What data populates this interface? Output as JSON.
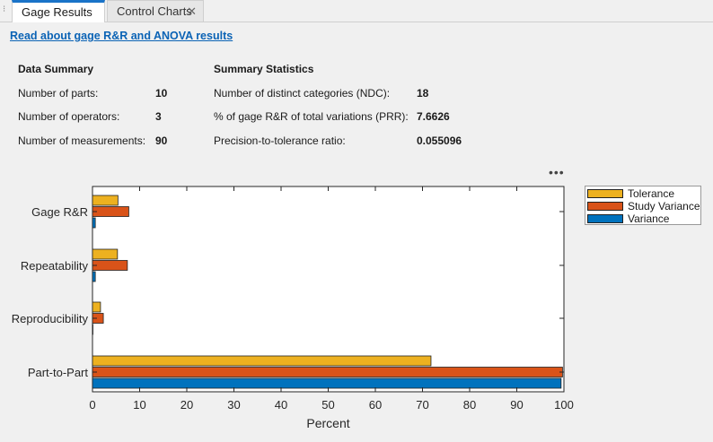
{
  "tabs": [
    {
      "label": "Gage Results",
      "active": true
    },
    {
      "label": "Control Charts",
      "active": false,
      "close_icon": "close-icon"
    }
  ],
  "link_text": "Read about gage R&R and ANOVA results",
  "data_summary": {
    "title": "Data Summary",
    "rows": [
      {
        "label": "Number of parts:",
        "value": "10"
      },
      {
        "label": "Number of operators:",
        "value": "3"
      },
      {
        "label": "Number of measurements:",
        "value": "90"
      }
    ]
  },
  "summary_statistics": {
    "title": "Summary Statistics",
    "rows": [
      {
        "label": "Number of distinct categories (NDC):",
        "value": "18"
      },
      {
        "label": "% of gage R&R of total variations (PRR):",
        "value": "7.6626"
      },
      {
        "label": "Precision-to-tolerance ratio:",
        "value": "0.055096"
      }
    ]
  },
  "more_options_icon": "ellipsis-icon",
  "chart_data": {
    "type": "bar",
    "orientation": "horizontal",
    "categories": [
      "Gage R&R",
      "Repeatability",
      "Reproducibility",
      "Part-to-Part"
    ],
    "series": [
      {
        "name": "Tolerance",
        "color": "#edb120",
        "values": [
          5.4,
          5.3,
          1.7,
          71.8
        ]
      },
      {
        "name": "Study Variance",
        "color": "#d95319",
        "values": [
          7.7,
          7.4,
          2.3,
          99.7
        ]
      },
      {
        "name": "Variance",
        "color": "#0072bd",
        "values": [
          0.6,
          0.6,
          0.05,
          99.4
        ]
      }
    ],
    "xlabel": "Percent",
    "xlim": [
      0,
      100
    ],
    "xticks": [
      0,
      10,
      20,
      30,
      40,
      50,
      60,
      70,
      80,
      90,
      100
    ],
    "grid": false,
    "legend_placement": "outside-right-top"
  }
}
